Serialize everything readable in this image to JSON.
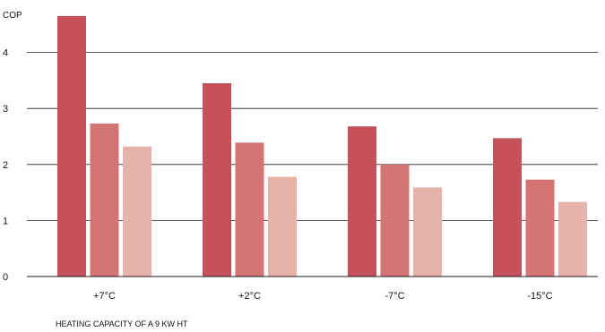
{
  "chart_data": {
    "type": "bar",
    "ylabel": "COP",
    "caption": "HEATING CAPACITY OF A 9 KW HT",
    "categories": [
      "+7°C",
      "+2°C",
      "-7°C",
      "-15°C"
    ],
    "ylim": [
      0,
      4.5
    ],
    "yticks": [
      "0",
      "1",
      "2",
      "3",
      "4"
    ],
    "grid": true,
    "series": [
      {
        "values": [
          4.65,
          3.45,
          2.68,
          2.47
        ],
        "color": "#c5525a"
      },
      {
        "values": [
          2.73,
          2.39,
          2.0,
          1.73
        ],
        "color": "#d47474"
      },
      {
        "values": [
          2.32,
          1.78,
          1.59,
          1.33
        ],
        "color": "#e6b2aa"
      }
    ]
  }
}
